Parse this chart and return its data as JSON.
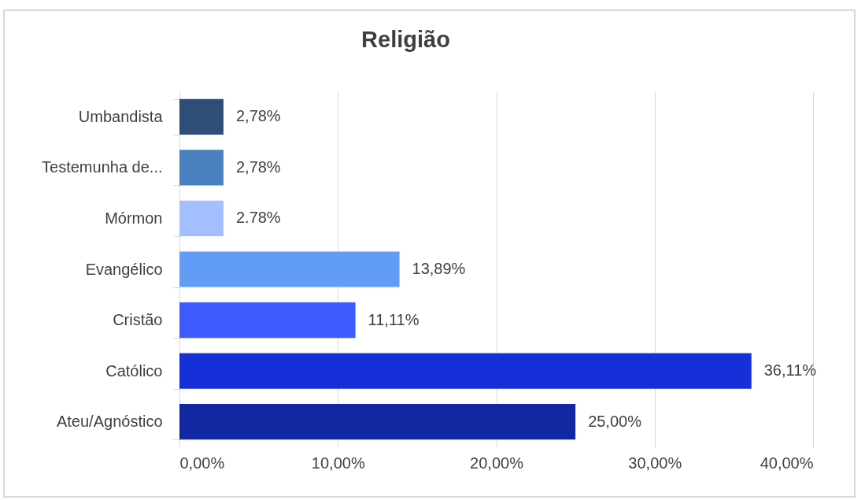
{
  "chart_data": {
    "type": "bar",
    "orientation": "horizontal",
    "title": "Religião",
    "categories": [
      "Umbandista",
      "Testemunha de...",
      "Mórmon",
      "Evangélico",
      "Cristão",
      "Católico",
      "Ateu/Agnóstico"
    ],
    "values": [
      2.78,
      2.78,
      2.78,
      13.89,
      11.11,
      36.11,
      25.0
    ],
    "value_labels": [
      "2,78%",
      "2,78%",
      "2.78%",
      "13,89%",
      "11,11%",
      "36,11%",
      "25,00%"
    ],
    "colors": [
      "#2e4d77",
      "#4a80bf",
      "#a4bfff",
      "#619cf7",
      "#3d5bff",
      "#1530d8",
      "#1228a2"
    ],
    "xlim": [
      0,
      40
    ],
    "xticks": [
      {
        "value": 0,
        "label": "0,00%"
      },
      {
        "value": 10,
        "label": "10,00%"
      },
      {
        "value": 20,
        "label": "20,00%"
      },
      {
        "value": 30,
        "label": "30,00%"
      },
      {
        "value": 40,
        "label": "40,00%"
      }
    ],
    "grid": "x"
  }
}
